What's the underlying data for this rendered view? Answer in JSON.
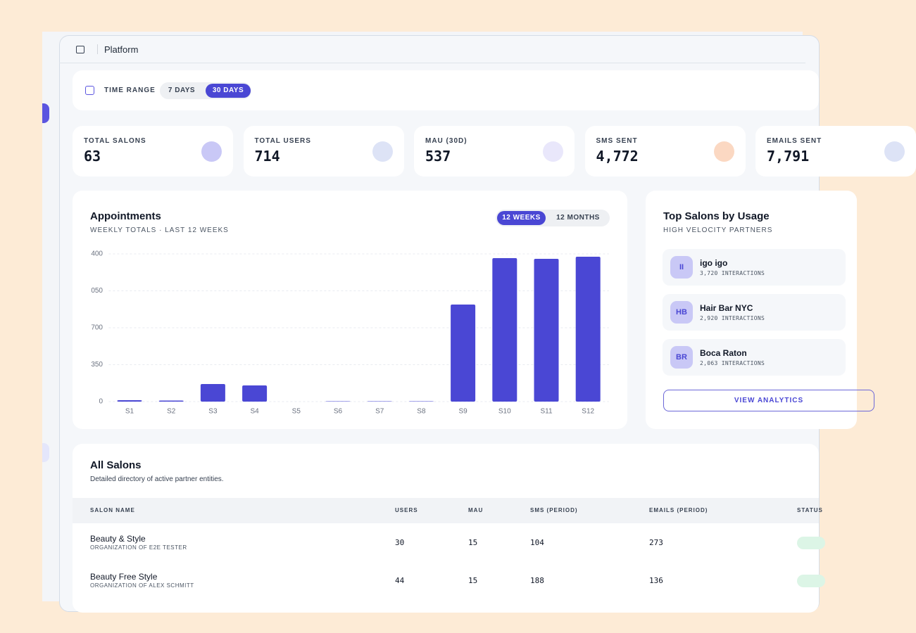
{
  "header": {
    "title": "Platform"
  },
  "filters": {
    "label": "TIME RANGE",
    "options": [
      "7 DAYS",
      "30 DAYS"
    ]
  },
  "stats": [
    {
      "label": "TOTAL SALONS",
      "value": "63"
    },
    {
      "label": "TOTAL USERS",
      "value": "714"
    },
    {
      "label": "MAU (30D)",
      "value": "537"
    },
    {
      "label": "SMS SENT",
      "value": "4,772"
    },
    {
      "label": "EMAILS SENT",
      "value": "7,791"
    }
  ],
  "chart_toggle": [
    "12 WEEKS",
    "12 MONTHS"
  ],
  "chart_data": {
    "type": "bar",
    "title": "Appointments",
    "subtitle": "WEEKLY TOTALS · LAST 12 WEEKS",
    "categories": [
      "S1",
      "S2",
      "S3",
      "S4",
      "S5",
      "S6",
      "S7",
      "S8",
      "S9",
      "S10",
      "S11",
      "S12"
    ],
    "values": [
      13,
      10,
      167,
      153,
      0,
      3,
      3,
      3,
      920,
      1360,
      1353,
      1373
    ],
    "color": "#4a47d4",
    "ylim": [
      0,
      1400
    ],
    "yticks": [
      0,
      350,
      700,
      {
        "value": 1050,
        "label": "050"
      },
      {
        "value": 1400,
        "label": "400"
      }
    ],
    "grid": true
  },
  "top_salons": {
    "title": "Top Salons by Usage",
    "subtitle": "HIGH VELOCITY PARTNERS",
    "items": [
      {
        "initials": "II",
        "name": "igo igo",
        "detail": "3,720 INTERACTIONS"
      },
      {
        "initials": "HB",
        "name": "Hair Bar NYC",
        "detail": "2,920 INTERACTIONS"
      },
      {
        "initials": "BR",
        "name": "Boca Raton",
        "detail": "2,063 INTERACTIONS"
      }
    ],
    "button": "VIEW ANALYTICS"
  },
  "table": {
    "title": "All Salons",
    "subtitle": "Detailed directory of active partner entities.",
    "columns": [
      "SALON NAME",
      "USERS",
      "MAU",
      "SMS (PERIOD)",
      "EMAILS (PERIOD)",
      "STATUS"
    ],
    "rows": [
      [
        "Beauty & Style",
        "ORGANIZATION OF E2E TESTER",
        "30",
        "15",
        "104",
        "273"
      ],
      [
        "Beauty Free Style",
        "ORGANIZATION OF ALEX SCHMITT",
        "44",
        "15",
        "188",
        "136"
      ]
    ]
  }
}
